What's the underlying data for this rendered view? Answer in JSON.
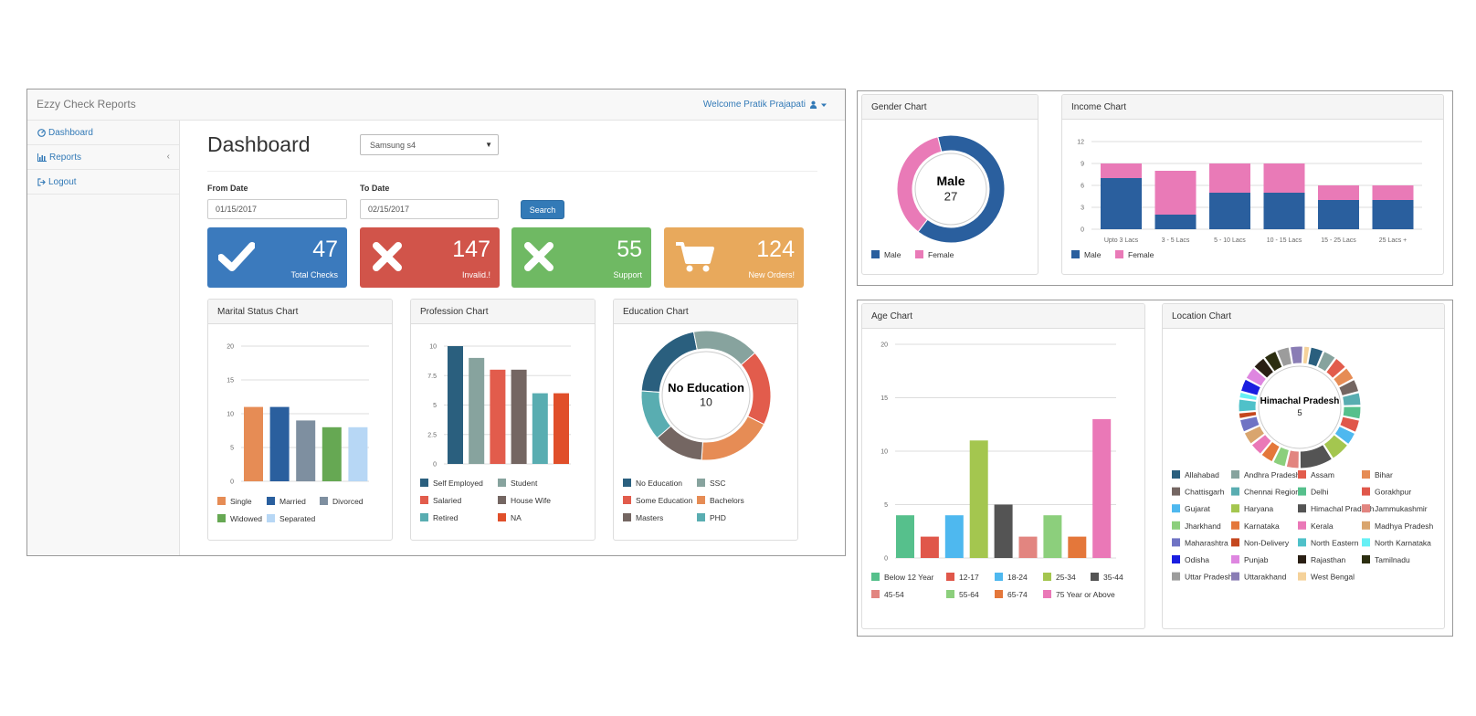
{
  "app": {
    "title": "Ezzy Check Reports",
    "welcome": "Welcome Pratik Prajapati"
  },
  "sidebar": {
    "items": [
      {
        "label": "Dashboard",
        "icon": "dashboard-icon"
      },
      {
        "label": "Reports",
        "icon": "bar-chart-icon"
      },
      {
        "label": "Logout",
        "icon": "sign-out-icon"
      }
    ]
  },
  "main": {
    "title": "Dashboard",
    "select_value": "Samsung s4",
    "from_label": "From Date",
    "from_value": "01/15/2017",
    "to_label": "To Date",
    "to_value": "02/15/2017",
    "search_label": "Search"
  },
  "stats": [
    {
      "value": "47",
      "caption": "Total Checks",
      "color": "#3b7abd",
      "icon": "check-icon"
    },
    {
      "value": "147",
      "caption": "Invalid.!",
      "color": "#d1544a",
      "icon": "times-icon"
    },
    {
      "value": "55",
      "caption": "Support",
      "color": "#6fb963",
      "icon": "times-icon"
    },
    {
      "value": "124",
      "caption": "New Orders!",
      "color": "#e8a95c",
      "icon": "cart-icon"
    }
  ],
  "panels": {
    "marital": "Marital Status Chart",
    "profession": "Profession Chart",
    "education": "Education Chart",
    "gender": "Gender Chart",
    "income": "Income Chart",
    "age": "Age Chart",
    "location": "Location Chart"
  },
  "chart_data": [
    {
      "id": "marital",
      "type": "bar",
      "title": "Marital Status Chart",
      "yticks": [
        "0",
        "5",
        "10",
        "15",
        "20"
      ],
      "ylim": [
        0,
        20
      ],
      "categories": [
        "Single",
        "Married",
        "Divorced",
        "Widowed",
        "Separated"
      ],
      "values": [
        11,
        11,
        9,
        8,
        8
      ],
      "colors": [
        "#e68c55",
        "#2a5f9e",
        "#7e8fa0",
        "#66a853",
        "#b7d7f5"
      ]
    },
    {
      "id": "profession",
      "type": "bar",
      "title": "Profession Chart",
      "yticks": [
        "0",
        "2.5",
        "5",
        "7.5",
        "10"
      ],
      "ylim": [
        0,
        10
      ],
      "categories": [
        "Self Employed",
        "Student",
        "Salaried",
        "House Wife",
        "Retired",
        "NA"
      ],
      "values": [
        10,
        9,
        8,
        8,
        6,
        6
      ],
      "colors": [
        "#2a5f7e",
        "#87a39e",
        "#e25c4c",
        "#746662",
        "#59adb1",
        "#e04f2a"
      ]
    },
    {
      "id": "education",
      "type": "pie",
      "title": "Education Chart",
      "center_label": "No Education",
      "center_value": "10",
      "categories": [
        "No Education",
        "SSC",
        "Some Education",
        "Bachelors",
        "Masters",
        "PHD"
      ],
      "values": [
        10,
        8,
        9,
        9,
        6,
        6
      ],
      "colors": [
        "#2a5f7e",
        "#87a39e",
        "#e25c4c",
        "#e68c55",
        "#746662",
        "#59adb1"
      ]
    },
    {
      "id": "gender",
      "type": "pie",
      "title": "Gender Chart",
      "center_label": "Male",
      "center_value": "27",
      "categories": [
        "Male",
        "Female"
      ],
      "values": [
        27,
        15
      ],
      "colors": [
        "#2a5f9e",
        "#e97ab7"
      ]
    },
    {
      "id": "income",
      "type": "bar",
      "title": "Income Chart",
      "stacked": true,
      "yticks": [
        "0",
        "3",
        "6",
        "9",
        "12"
      ],
      "ylim": [
        0,
        12
      ],
      "categories": [
        "Upto 3 Lacs",
        "3 - 5 Lacs",
        "5 - 10 Lacs",
        "10 - 15 Lacs",
        "15 - 25 Lacs",
        "25 Lacs +"
      ],
      "series": [
        {
          "name": "Male",
          "values": [
            7,
            2,
            5,
            5,
            4,
            4
          ],
          "color": "#2a5f9e"
        },
        {
          "name": "Female",
          "values": [
            2,
            6,
            4,
            4,
            2,
            2
          ],
          "color": "#e97ab7"
        }
      ]
    },
    {
      "id": "age",
      "type": "bar",
      "title": "Age Chart",
      "yticks": [
        "0",
        "5",
        "10",
        "15",
        "20"
      ],
      "ylim": [
        0,
        20
      ],
      "categories": [
        "Below 12 Year",
        "12-17",
        "18-24",
        "25-34",
        "35-44",
        "45-54",
        "55-64",
        "65-74",
        "75 Year or Above"
      ],
      "values": [
        4,
        2,
        4,
        11,
        5,
        2,
        4,
        2,
        13
      ],
      "colors": [
        "#56c08c",
        "#e0574a",
        "#4eb8ef",
        "#a4c64f",
        "#545454",
        "#e28580",
        "#8ccf7c",
        "#e4773a",
        "#ea78b7"
      ]
    },
    {
      "id": "location",
      "type": "pie",
      "title": "Location Chart",
      "center_label": "Himachal Pradesh",
      "center_value": "5",
      "categories": [
        "Allahabad",
        "Andhra Pradesh",
        "Assam",
        "Bihar",
        "Chattisgarh",
        "Chennai Region",
        "Delhi",
        "Gorakhpur",
        "Gujarat",
        "Haryana",
        "Himachal Pradesh",
        "Jammukashmir",
        "Jharkhand",
        "Karnataka",
        "Kerala",
        "Madhya Pradesh",
        "Maharashtra",
        "Non-Delivery",
        "North Eastern",
        "North Karnataka",
        "Odisha",
        "Punjab",
        "Rajasthan",
        "Tamilnadu",
        "Uttar Pradesh",
        "Uttarakhand",
        "West Bengal"
      ],
      "values": [
        2,
        2,
        2,
        2,
        2,
        2,
        2,
        2,
        2,
        3,
        5,
        2,
        2,
        2,
        2,
        2,
        2,
        1,
        2,
        1,
        2,
        2,
        2,
        2,
        2,
        2,
        1
      ],
      "colors": [
        "#2a5f7e",
        "#87a39e",
        "#e25c4c",
        "#e68c55",
        "#746662",
        "#59adb1",
        "#56c08c",
        "#e0574a",
        "#4eb8ef",
        "#a4c64f",
        "#545454",
        "#e28580",
        "#8ccf7c",
        "#e4773a",
        "#ea78b7",
        "#d9a56e",
        "#6f73c4",
        "#c4471e",
        "#4fc1c9",
        "#66f0f5",
        "#1a1ee0",
        "#de86e0",
        "#2a1f14",
        "#2c2e10",
        "#9c9c9c",
        "#8a7db5",
        "#f5d29a"
      ]
    }
  ]
}
